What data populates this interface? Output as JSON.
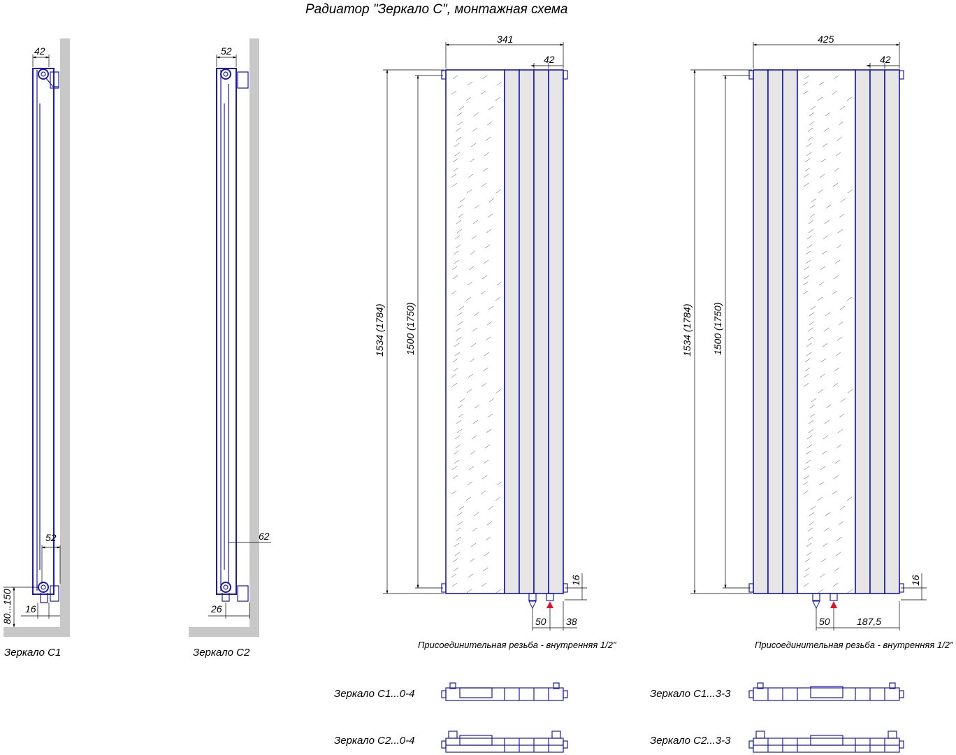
{
  "title": "Радиатор \"Зеркало С\",  монтажная схема",
  "side_views": [
    {
      "label": "Зеркало С1",
      "dims": {
        "depth": "42",
        "bottom_depth": "52",
        "offset": "16",
        "floor_gap": "80...150"
      }
    },
    {
      "label": "Зеркало С2",
      "dims": {
        "depth": "52",
        "bottom_depth": "62",
        "offset": "26"
      }
    }
  ],
  "front_views": [
    {
      "width": "341",
      "section": "42",
      "total_height": "1534 (1784)",
      "axis_height": "1500 (1750)",
      "bottom_offset": "16",
      "pipe_spacing": "50",
      "edge_offset": "38",
      "note": "Присоединительная резьба - внутренняя 1/2\""
    },
    {
      "width": "425",
      "section": "42",
      "total_height": "1534 (1784)",
      "axis_height": "1500 (1750)",
      "bottom_offset": "16",
      "pipe_spacing": "50",
      "edge_offset": "187,5",
      "note": "Присоединительная резьба - внутренняя 1/2\""
    }
  ],
  "top_views": [
    {
      "label": "Зеркало С1...0-4"
    },
    {
      "label": "Зеркало С2...0-4"
    },
    {
      "label": "Зеркало С1...3-3"
    },
    {
      "label": "Зеркало С2...3-3"
    }
  ],
  "colors": {
    "outline": "#1a1ab4",
    "wall": "#c8c8c8",
    "panel": "#e6e6e6",
    "supply_marker": "#e0102a"
  }
}
